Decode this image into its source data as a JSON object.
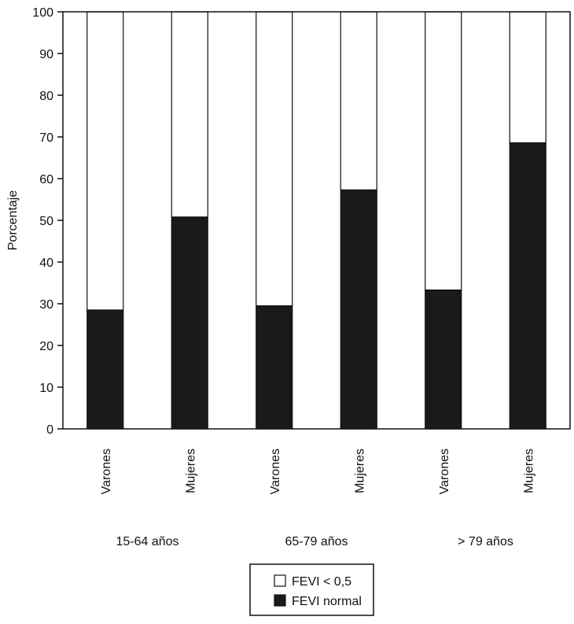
{
  "chart_data": {
    "type": "bar",
    "stacked": true,
    "categories": [
      "Varones",
      "Mujeres",
      "Varones",
      "Mujeres",
      "Varones",
      "Mujeres"
    ],
    "groups": [
      {
        "label": "15-64 años",
        "categories": [
          "Varones",
          "Mujeres"
        ]
      },
      {
        "label": "65-79 años",
        "categories": [
          "Varones",
          "Mujeres"
        ]
      },
      {
        "label": "> 79 años",
        "categories": [
          "Varones",
          "Mujeres"
        ]
      }
    ],
    "series": [
      {
        "name": "FEVI normal",
        "color": "#1a1a1a",
        "values": [
          28.5,
          50.8,
          29.5,
          57.3,
          33.3,
          68.6
        ]
      },
      {
        "name": "FEVI < 0,5",
        "color": "#ffffff",
        "values": [
          71.5,
          49.2,
          70.5,
          42.7,
          66.7,
          31.4
        ]
      }
    ],
    "ylabel": "Porcentaje",
    "xlabel": "",
    "ylim": [
      0,
      100
    ],
    "yticks": [
      0,
      10,
      20,
      30,
      40,
      50,
      60,
      70,
      80,
      90,
      100
    ],
    "grid": false,
    "legend": {
      "placement": "bottom-center",
      "entries": [
        {
          "label": "FEVI < 0,5",
          "color": "#ffffff"
        },
        {
          "label": "FEVI normal",
          "color": "#1a1a1a"
        }
      ]
    }
  }
}
